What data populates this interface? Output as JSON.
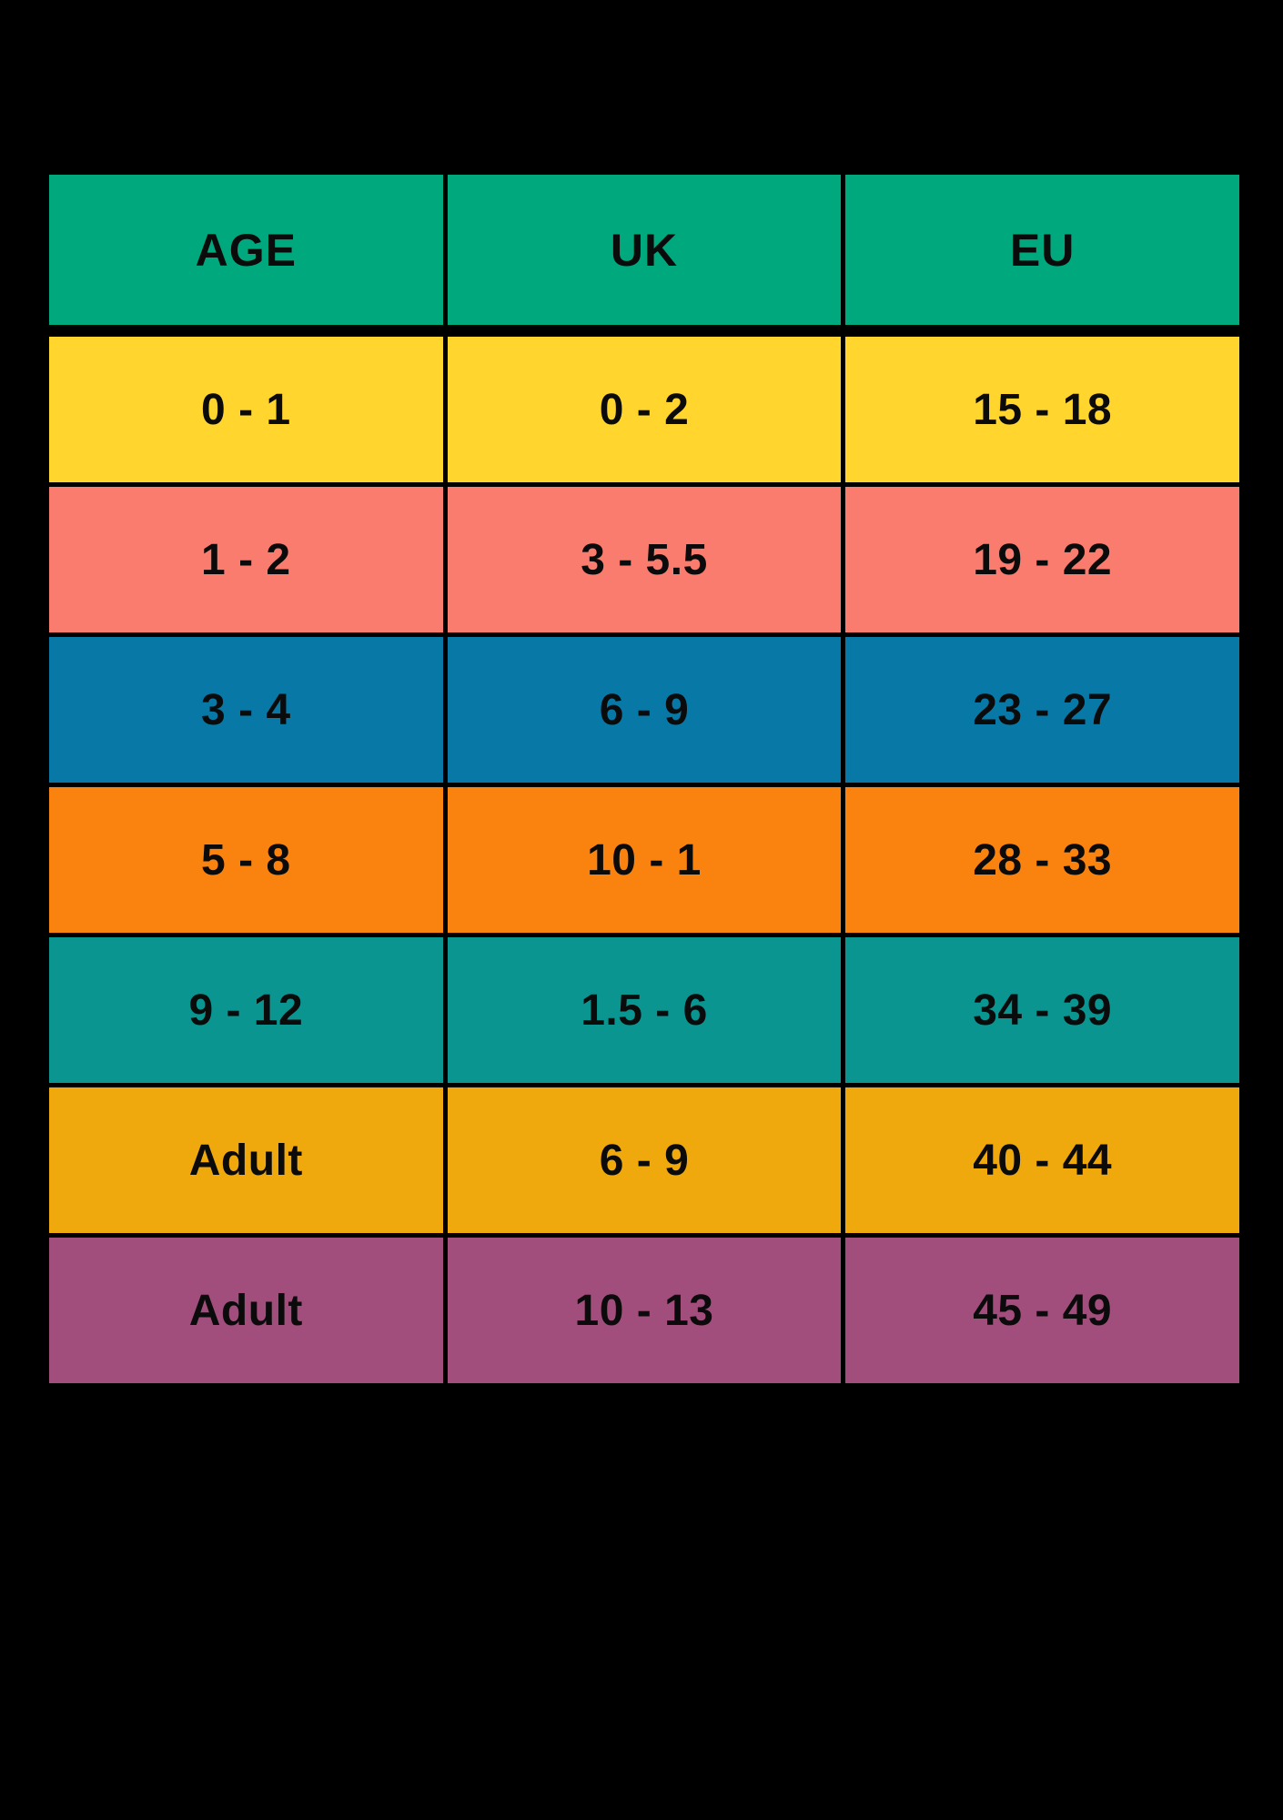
{
  "page": {
    "background": "#000000"
  },
  "chart_data": {
    "type": "table",
    "columns": [
      "AGE",
      "UK",
      "EU"
    ],
    "rows": [
      [
        "0 - 1",
        "0 - 2",
        "15 - 18"
      ],
      [
        "1 - 2",
        "3 - 5.5",
        "19 - 22"
      ],
      [
        "3 - 4",
        "6 - 9",
        "23 - 27"
      ],
      [
        "5 - 8",
        "10 - 1",
        "28 - 33"
      ],
      [
        "9 - 12",
        "1.5 - 6",
        "34 - 39"
      ],
      [
        "Adult",
        "6 - 9",
        "40 - 44"
      ],
      [
        "Adult",
        "10 - 13",
        "45 - 49"
      ]
    ],
    "header_color": "#00A87E",
    "row_colors": [
      "#FFD52E",
      "#FA7C6E",
      "#0878A6",
      "#FA830F",
      "#0A9591",
      "#F0A90D",
      "#A24E7C"
    ],
    "text_color": "#0b0b0b",
    "grid_line_color": "#000000",
    "legend_position": "none",
    "grid": "on"
  }
}
